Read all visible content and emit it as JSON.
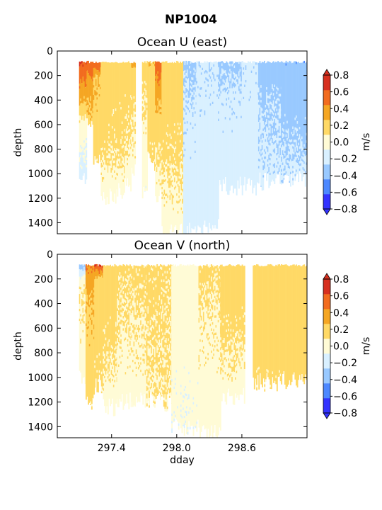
{
  "figure": {
    "title": "NP1004"
  },
  "chart_data": [
    {
      "type": "heatmap",
      "title": "Ocean U (east)",
      "xlabel": "",
      "ylabel": "depth",
      "xlim": [
        296.9,
        299.2
      ],
      "ylim": [
        1490,
        0
      ],
      "xticks": [
        297.4,
        298.0,
        298.6
      ],
      "xtick_labels": [],
      "yticks": [
        0,
        200,
        400,
        600,
        800,
        1000,
        1200,
        1400
      ],
      "colorbar": {
        "label": "m/s",
        "levels": [
          -0.8,
          -0.6,
          -0.4,
          -0.2,
          0.0,
          0.2,
          0.4,
          0.6,
          0.8
        ],
        "tick_labels": [
          "−0.8",
          "−0.6",
          "−0.4",
          "−0.2",
          "0.0",
          "0.2",
          "0.4",
          "0.6",
          "0.8"
        ],
        "colors": [
          "#3333ff",
          "#4d88ff",
          "#99c9ff",
          "#d9f0ff",
          "#fffbd6",
          "#ffd966",
          "#f5a623",
          "#f26c1f",
          "#d7301f"
        ]
      },
      "columns": [
        {
          "x0": 297.1,
          "x1": 297.17,
          "bottom": 1020,
          "profile": [
            [
              80,
              0.8
            ],
            [
              300,
              0.55
            ],
            [
              600,
              0.1
            ],
            [
              1020,
              -0.1
            ]
          ]
        },
        {
          "x0": 297.17,
          "x1": 297.23,
          "bottom": 620,
          "profile": [
            [
              80,
              0.7
            ],
            [
              300,
              0.5
            ],
            [
              620,
              0.3
            ]
          ]
        },
        {
          "x0": 297.23,
          "x1": 297.3,
          "bottom": 880,
          "profile": [
            [
              80,
              0.75
            ],
            [
              200,
              0.4
            ],
            [
              880,
              0.25
            ]
          ]
        },
        {
          "x0": 297.3,
          "x1": 297.37,
          "bottom": 1200,
          "profile": [
            [
              50,
              0.3
            ],
            [
              600,
              0.3
            ],
            [
              1200,
              0.1
            ]
          ]
        },
        {
          "x0": 297.37,
          "x1": 297.45,
          "bottom": 1180,
          "profile": [
            [
              50,
              0.3
            ],
            [
              700,
              0.25
            ],
            [
              1180,
              0.1
            ]
          ]
        },
        {
          "x0": 297.45,
          "x1": 297.52,
          "bottom": 1150,
          "profile": [
            [
              50,
              0.28
            ],
            [
              800,
              0.25
            ],
            [
              1150,
              0.1
            ]
          ]
        },
        {
          "x0": 297.52,
          "x1": 297.58,
          "bottom": 1100,
          "profile": [
            [
              50,
              0.3
            ],
            [
              500,
              0.25
            ],
            [
              1100,
              0.1
            ]
          ]
        },
        {
          "x0": 297.58,
          "x1": 297.62,
          "bottom": 1000,
          "profile": [
            [
              50,
              0.75
            ],
            [
              150,
              0.3
            ],
            [
              1000,
              0.1
            ]
          ]
        },
        {
          "x0": 297.68,
          "x1": 297.73,
          "bottom": 1150,
          "profile": [
            [
              80,
              0.3
            ],
            [
              600,
              0.15
            ],
            [
              1150,
              0.05
            ]
          ]
        },
        {
          "x0": 297.73,
          "x1": 297.8,
          "bottom": 900,
          "profile": [
            [
              80,
              0.4
            ],
            [
              200,
              0.3
            ],
            [
              900,
              0.25
            ]
          ]
        },
        {
          "x0": 297.8,
          "x1": 297.86,
          "bottom": 1180,
          "profile": [
            [
              80,
              0.75
            ],
            [
              300,
              0.5
            ],
            [
              600,
              0.3
            ],
            [
              1180,
              0.1
            ]
          ]
        },
        {
          "x0": 297.86,
          "x1": 298.06,
          "bottom": 1480,
          "profile": [
            [
              80,
              0.3
            ],
            [
              800,
              0.25
            ],
            [
              1480,
              0.1
            ]
          ]
        },
        {
          "x0": 298.06,
          "x1": 298.18,
          "bottom": 1480,
          "profile": [
            [
              80,
              -0.25
            ],
            [
              500,
              -0.15
            ],
            [
              1480,
              -0.1
            ]
          ]
        },
        {
          "x0": 298.18,
          "x1": 298.38,
          "bottom": 1440,
          "profile": [
            [
              80,
              -0.15
            ],
            [
              1440,
              -0.1
            ]
          ]
        },
        {
          "x0": 298.38,
          "x1": 298.6,
          "bottom": 1100,
          "profile": [
            [
              80,
              -0.25
            ],
            [
              400,
              -0.15
            ],
            [
              1100,
              -0.1
            ]
          ]
        },
        {
          "x0": 298.6,
          "x1": 298.75,
          "bottom": 1100,
          "profile": [
            [
              80,
              -0.15
            ],
            [
              1100,
              -0.1
            ]
          ]
        },
        {
          "x0": 298.75,
          "x1": 298.96,
          "bottom": 1060,
          "profile": [
            [
              80,
              -0.3
            ],
            [
              500,
              -0.2
            ],
            [
              1060,
              -0.15
            ]
          ]
        },
        {
          "x0": 298.96,
          "x1": 299.2,
          "bottom": 1040,
          "profile": [
            [
              80,
              -0.35
            ],
            [
              600,
              -0.25
            ],
            [
              1040,
              -0.15
            ]
          ]
        }
      ]
    },
    {
      "type": "heatmap",
      "title": "Ocean V (north)",
      "xlabel": "dday",
      "ylabel": "depth",
      "xlim": [
        296.9,
        299.2
      ],
      "ylim": [
        1490,
        0
      ],
      "xticks": [
        297.4,
        298.0,
        298.6
      ],
      "xtick_labels": [
        "297.4",
        "298.0",
        "298.6"
      ],
      "yticks": [
        0,
        200,
        400,
        600,
        800,
        1000,
        1200,
        1400
      ],
      "colorbar": {
        "label": "m/s",
        "levels": [
          -0.8,
          -0.6,
          -0.4,
          -0.2,
          0.0,
          0.2,
          0.4,
          0.6,
          0.8
        ],
        "tick_labels": [
          "−0.8",
          "−0.6",
          "−0.4",
          "−0.2",
          "0.0",
          "0.2",
          "0.4",
          "0.6",
          "0.8"
        ],
        "colors": [
          "#3333ff",
          "#4d88ff",
          "#99c9ff",
          "#d9f0ff",
          "#fffbd6",
          "#ffd966",
          "#f5a623",
          "#f26c1f",
          "#d7301f"
        ]
      },
      "columns": [
        {
          "x0": 297.1,
          "x1": 297.16,
          "bottom": 1020,
          "profile": [
            [
              80,
              -0.3
            ],
            [
              250,
              0.2
            ],
            [
              1020,
              0.1
            ]
          ]
        },
        {
          "x0": 297.16,
          "x1": 297.24,
          "bottom": 1200,
          "profile": [
            [
              80,
              0.6
            ],
            [
              350,
              0.4
            ],
            [
              1200,
              0.25
            ]
          ]
        },
        {
          "x0": 297.24,
          "x1": 297.32,
          "bottom": 1050,
          "profile": [
            [
              80,
              0.8
            ],
            [
              200,
              0.3
            ],
            [
              1050,
              0.25
            ]
          ]
        },
        {
          "x0": 297.32,
          "x1": 297.45,
          "bottom": 1250,
          "profile": [
            [
              50,
              0.3
            ],
            [
              700,
              0.25
            ],
            [
              1250,
              0.1
            ]
          ]
        },
        {
          "x0": 297.45,
          "x1": 297.58,
          "bottom": 1200,
          "profile": [
            [
              50,
              0.25
            ],
            [
              1200,
              0.1
            ]
          ]
        },
        {
          "x0": 297.58,
          "x1": 297.72,
          "bottom": 1180,
          "profile": [
            [
              80,
              0.25
            ],
            [
              900,
              0.15
            ],
            [
              1180,
              0.1
            ]
          ]
        },
        {
          "x0": 297.72,
          "x1": 297.95,
          "bottom": 1200,
          "profile": [
            [
              80,
              0.25
            ],
            [
              1200,
              0.2
            ]
          ]
        },
        {
          "x0": 297.95,
          "x1": 298.2,
          "bottom": 1400,
          "profile": [
            [
              80,
              0.1
            ],
            [
              1400,
              0.05
            ]
          ]
        },
        {
          "x0": 298.2,
          "x1": 298.4,
          "bottom": 1450,
          "profile": [
            [
              80,
              0.25
            ],
            [
              700,
              0.15
            ],
            [
              1450,
              0.1
            ]
          ]
        },
        {
          "x0": 298.4,
          "x1": 298.62,
          "bottom": 1150,
          "profile": [
            [
              80,
              0.3
            ],
            [
              600,
              0.25
            ],
            [
              1150,
              0.1
            ]
          ]
        },
        {
          "x0": 298.7,
          "x1": 298.96,
          "bottom": 1040,
          "profile": [
            [
              80,
              0.3
            ],
            [
              700,
              0.3
            ],
            [
              1040,
              0.25
            ]
          ]
        },
        {
          "x0": 298.96,
          "x1": 299.2,
          "bottom": 1020,
          "profile": [
            [
              80,
              0.3
            ],
            [
              1020,
              0.3
            ]
          ]
        }
      ]
    }
  ]
}
